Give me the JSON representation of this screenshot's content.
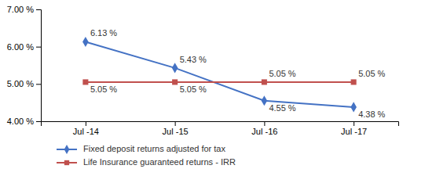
{
  "chart_data": {
    "type": "line",
    "categories": [
      "Jul -14",
      "Jul -15",
      "Jul -16",
      "Jul -17"
    ],
    "series": [
      {
        "name": "Fixed deposit returns adjusted for tax",
        "color": "#4472C4",
        "marker": "diamond",
        "values": [
          6.13,
          5.43,
          4.55,
          4.38
        ],
        "value_labels": [
          "6.13 %",
          "5.43 %",
          "4.55 %",
          "4.38 %"
        ]
      },
      {
        "name": "Life Insurance guaranteed returns - IRR",
        "color": "#C0504D",
        "marker": "square",
        "values": [
          5.05,
          5.05,
          5.05,
          5.05
        ],
        "value_labels": [
          "5.05 %",
          "5.05 %",
          "5.05 %",
          "5.05 %"
        ]
      }
    ],
    "ylim": [
      4.0,
      7.0
    ],
    "yticks": [
      {
        "value": 4.0,
        "label": "4.00 %"
      },
      {
        "value": 5.0,
        "label": "5.00 %"
      },
      {
        "value": 6.0,
        "label": "6.00 %"
      },
      {
        "value": 7.0,
        "label": "7.00 %"
      }
    ],
    "grid": false,
    "legend": "bottom",
    "data_labels": true
  }
}
